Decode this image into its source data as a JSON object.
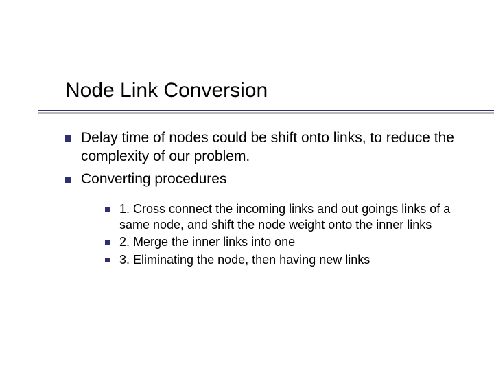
{
  "title": "Node Link Conversion",
  "colors": {
    "bullet": "#2f2f6f",
    "underline": "#2f2f6f",
    "underline_shadow": "#b8b8b8",
    "text": "#000000",
    "background": "#ffffff"
  },
  "typography": {
    "title_fontsize": 30,
    "l1_fontsize": 21,
    "l2_fontsize": 18,
    "title_family": "Arial",
    "body_family": "Verdana"
  },
  "bullets_l1": [
    "Delay time of nodes could be shift onto links, to reduce the complexity of our problem.",
    "Converting procedures"
  ],
  "bullets_l2": [
    "1. Cross connect the incoming links and out goings links of a same node, and shift the node weight onto the inner links",
    "2. Merge the inner links into one",
    "3. Eliminating the node, then having new links"
  ]
}
